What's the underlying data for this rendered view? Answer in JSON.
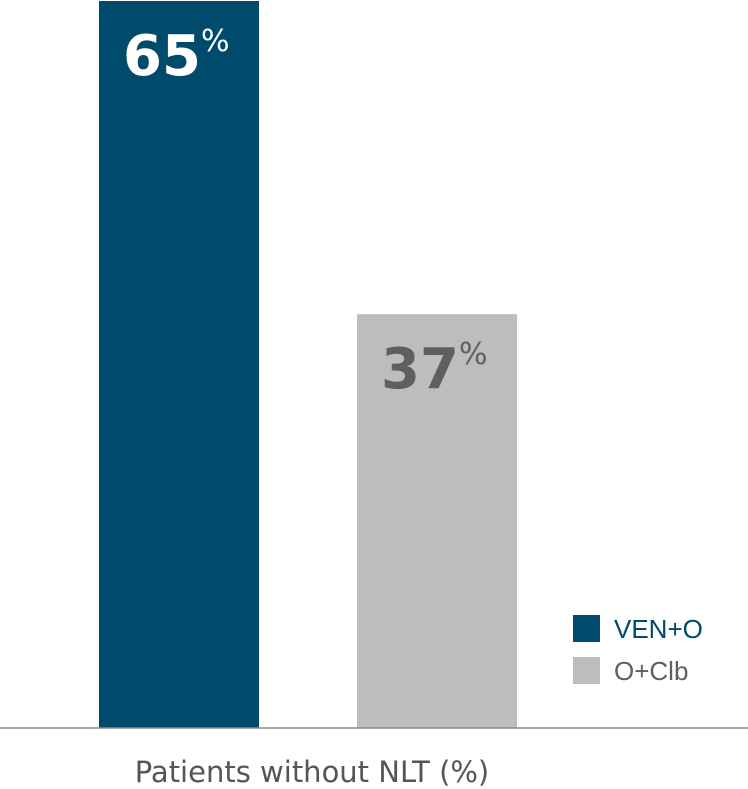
{
  "chart_data": {
    "type": "bar",
    "categories": [
      "VEN+O",
      "O+Clb"
    ],
    "values": [
      65,
      37
    ],
    "value_labels": [
      "65",
      "37"
    ],
    "value_suffix": "%",
    "xlabel": "Patients without NLT (%)",
    "ylabel": "",
    "ylim": [
      0,
      65
    ],
    "legend": {
      "placement": "bottom-right",
      "entries": [
        "VEN+O",
        "O+Clb"
      ]
    },
    "colors": {
      "VEN+O": "#004b6b",
      "O+Clb": "#bdbdbd"
    },
    "label_colors": {
      "VEN+O": "#ffffff",
      "O+Clb": "#5f5f5f"
    },
    "legend_text_colors": {
      "VEN+O": "#004b6b",
      "O+Clb": "#5f5f5f"
    },
    "grid": false
  }
}
